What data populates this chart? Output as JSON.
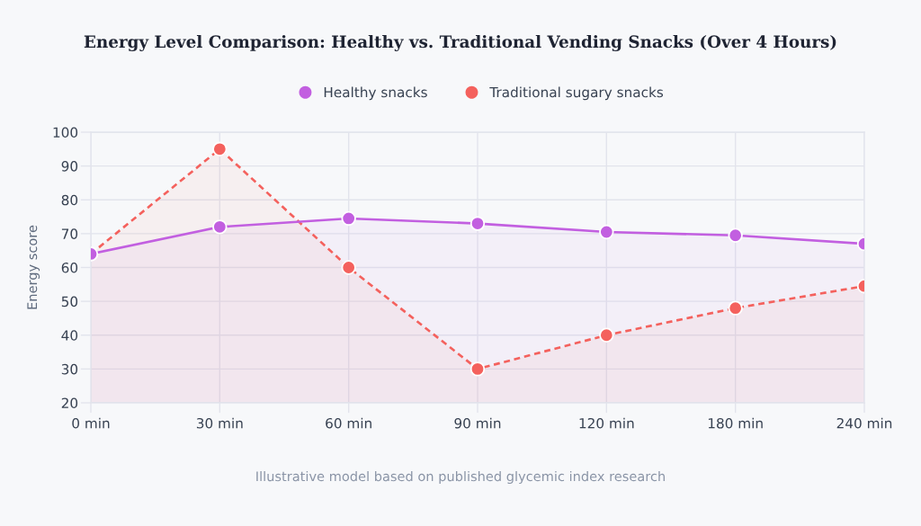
{
  "chart_data": {
    "type": "area",
    "title": "Energy Level Comparison: Healthy vs. Traditional Vending Snacks (Over 4 Hours)",
    "ylabel": "Energy score",
    "categories": [
      "0 min",
      "30 min",
      "60 min",
      "90 min",
      "120 min",
      "180 min",
      "240 min"
    ],
    "series": [
      {
        "name": "Healthy snacks",
        "color": "#c25fe0",
        "line_style": "solid",
        "values": [
          64,
          72,
          74.5,
          73,
          70.5,
          69.5,
          67
        ]
      },
      {
        "name": "Traditional sugary snacks",
        "color": "#f4615d",
        "line_style": "dashed",
        "values": [
          64,
          95,
          60,
          30,
          40,
          48,
          54.5
        ]
      }
    ],
    "ylim": [
      20,
      100
    ],
    "yticks": [
      20,
      30,
      40,
      50,
      60,
      70,
      80,
      90,
      100
    ],
    "grid": true,
    "legend": "top",
    "marker": "circle",
    "annotations": [
      "Illustrative model based on published glycemic index research"
    ]
  }
}
